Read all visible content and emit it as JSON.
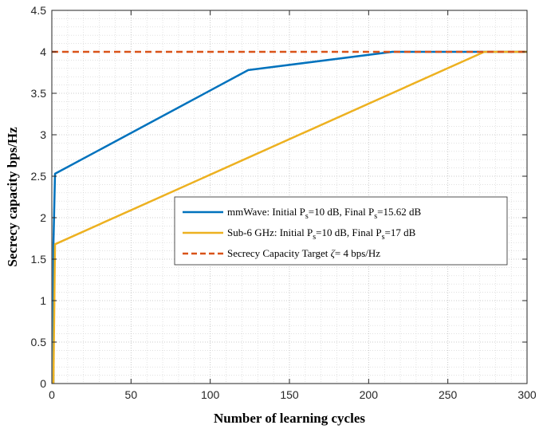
{
  "chart_data": {
    "type": "line",
    "title": "",
    "xlabel": "Number of learning cycles",
    "ylabel": "Secrecy capacity bps/Hz",
    "xlim": [
      0,
      300
    ],
    "ylim": [
      0,
      4.5
    ],
    "xticks": [
      0,
      50,
      100,
      150,
      200,
      250,
      300
    ],
    "yticks": [
      0,
      0.5,
      1,
      1.5,
      2,
      2.5,
      3,
      3.5,
      4,
      4.5
    ],
    "xtick_labels": [
      "0",
      "50",
      "100",
      "150",
      "200",
      "250",
      "300"
    ],
    "ytick_labels": [
      "0",
      "0.5",
      "1",
      "1.5",
      "2",
      "2.5",
      "3",
      "3.5",
      "4",
      "4.5"
    ],
    "grid": true,
    "minor_grid": true,
    "legend_position": "center-right",
    "series": [
      {
        "name": "mmWave: Initial P_s=10 dB, Final P_s=15.62 dB",
        "legend_parts": [
          "mmWave: Initial P",
          "s",
          "=10 dB, Final P",
          "s",
          "=15.62 dB"
        ],
        "color": "#0072BD",
        "style": "solid",
        "x": [
          1,
          1,
          2,
          124,
          215,
          300
        ],
        "y": [
          0,
          1.68,
          2.53,
          3.78,
          4.0,
          4.0
        ]
      },
      {
        "name": "Sub-6 GHz: Initial P_s=10 dB, Final P_s=17 dB",
        "legend_parts": [
          "Sub-6 GHz: Initial P",
          "s",
          "=10 dB, Final P",
          "s",
          "=17 dB"
        ],
        "color": "#EDB120",
        "style": "solid",
        "x": [
          1,
          2,
          273,
          300
        ],
        "y": [
          0,
          1.68,
          4.0,
          4.0
        ]
      },
      {
        "name": "Secrecy Capacity Target ζ= 4 bps/Hz",
        "legend_parts": [
          "Secrecy Capacity Target ",
          "ζ",
          "= 4 bps/Hz"
        ],
        "color": "#D95319",
        "style": "dashed",
        "x": [
          0,
          300
        ],
        "y": [
          4.0,
          4.0
        ]
      }
    ]
  }
}
